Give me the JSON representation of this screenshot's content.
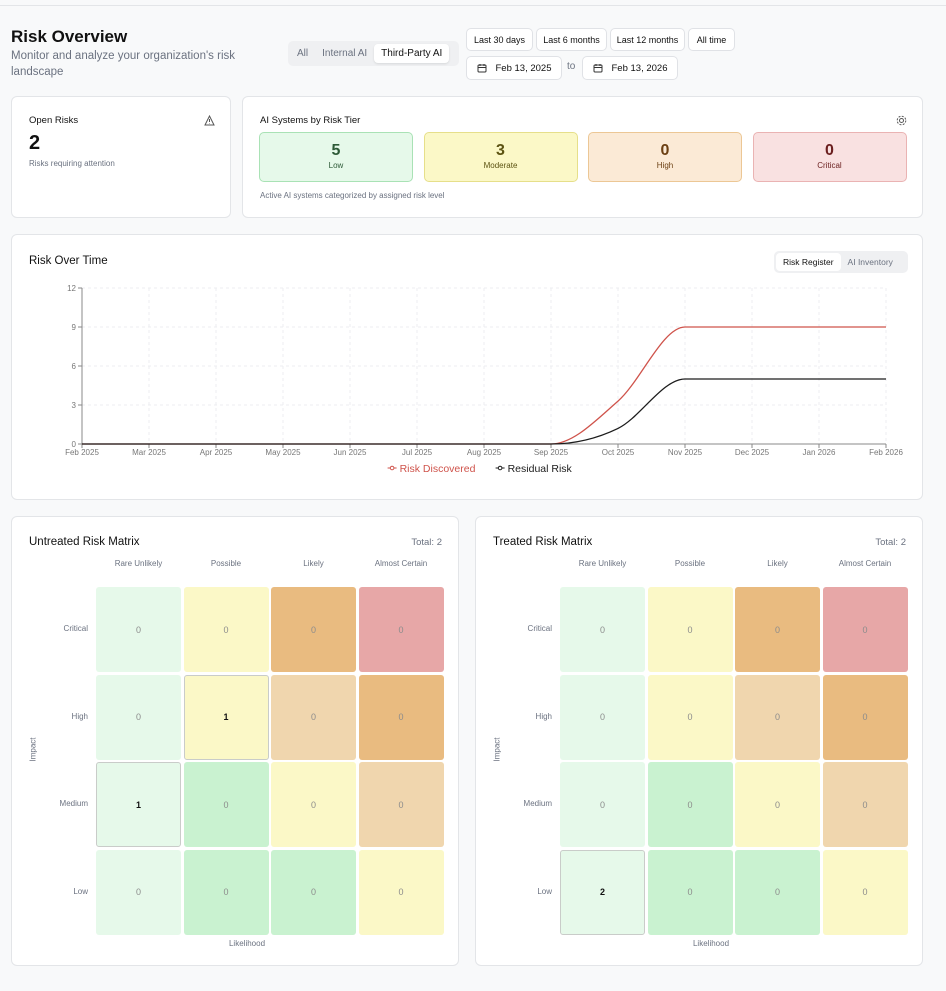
{
  "header": {
    "title": "Risk Overview",
    "subtitle": "Monitor and analyze your organization's risk landscape"
  },
  "filters": {
    "scopes": [
      "All",
      "Internal AI",
      "Third-Party AI"
    ],
    "active_scope": 2,
    "ranges": [
      "Last 30 days",
      "Last 6 months",
      "Last 12 months",
      "All time"
    ],
    "date_from": "Feb 13, 2025",
    "date_separator": "to",
    "date_to": "Feb 13, 2026"
  },
  "open_risks": {
    "title": "Open Risks",
    "count": 2,
    "caption": "Risks requiring attention"
  },
  "risk_tiers": {
    "title": "AI Systems by Risk Tier",
    "tiers": [
      {
        "count": 5,
        "label": "Low"
      },
      {
        "count": 3,
        "label": "Moderate"
      },
      {
        "count": 0,
        "label": "High"
      },
      {
        "count": 0,
        "label": "Critical"
      }
    ],
    "caption": "Active AI systems categorized by assigned risk level"
  },
  "chart_data": {
    "type": "line",
    "title": "Risk Over Time",
    "views": [
      "Risk Register",
      "AI Inventory"
    ],
    "active_view": 0,
    "x": [
      "Feb 2025",
      "Mar 2025",
      "Apr 2025",
      "May 2025",
      "Jun 2025",
      "Jul 2025",
      "Aug 2025",
      "Sep 2025",
      "Oct 2025",
      "Nov 2025",
      "Dec 2025",
      "Jan 2026",
      "Feb 2026"
    ],
    "ylim": [
      0,
      12
    ],
    "yticks": [
      0,
      3,
      6,
      9,
      12
    ],
    "grid": true,
    "legend": "bottom",
    "series": [
      {
        "name": "Risk Discovered",
        "color": "#cf534b",
        "values": [
          0,
          0,
          0,
          0,
          0,
          0,
          0,
          0,
          3.3,
          9,
          9,
          9,
          9
        ]
      },
      {
        "name": "Residual Risk",
        "color": "#1c1c1c",
        "values": [
          0,
          0,
          0,
          0,
          0,
          0,
          0,
          0,
          1.2,
          5,
          5,
          5,
          5
        ]
      }
    ]
  },
  "matrices": [
    {
      "title": "Untreated Risk Matrix",
      "total_label": "Total:",
      "total": 2,
      "likelihood": [
        "Rare Unlikely",
        "Possible",
        "Likely",
        "Almost Certain"
      ],
      "impact": [
        "Critical",
        "High",
        "Medium",
        "Low"
      ],
      "x_label": "Likelihood",
      "y_label": "Impact",
      "cells": [
        [
          0,
          0,
          0,
          0
        ],
        [
          0,
          1,
          0,
          0
        ],
        [
          1,
          0,
          0,
          0
        ],
        [
          0,
          0,
          0,
          0
        ]
      ]
    },
    {
      "title": "Treated Risk Matrix",
      "total_label": "Total:",
      "total": 2,
      "likelihood": [
        "Rare Unlikely",
        "Possible",
        "Likely",
        "Almost Certain"
      ],
      "impact": [
        "Critical",
        "High",
        "Medium",
        "Low"
      ],
      "x_label": "Likelihood",
      "y_label": "Impact",
      "cells": [
        [
          0,
          0,
          0,
          0
        ],
        [
          0,
          0,
          0,
          0
        ],
        [
          0,
          0,
          0,
          0
        ],
        [
          2,
          0,
          0,
          0
        ]
      ]
    }
  ]
}
